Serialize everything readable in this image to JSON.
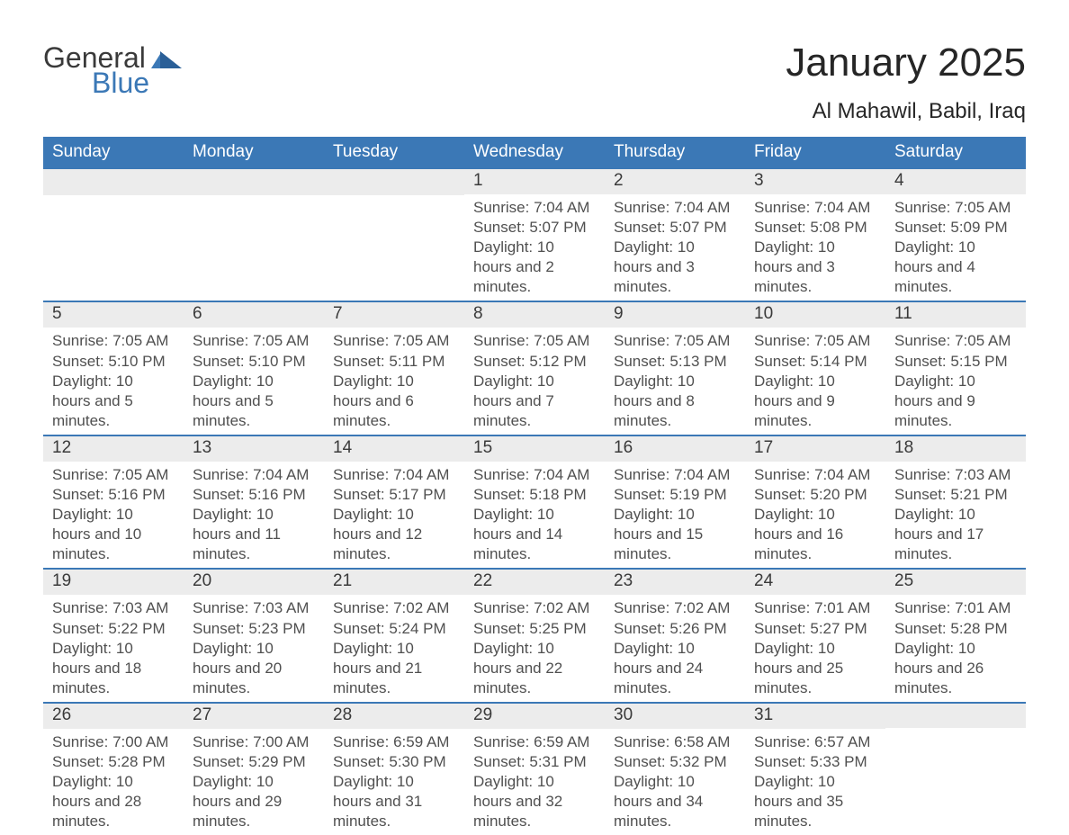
{
  "brand": {
    "word1": "General",
    "word2": "Blue"
  },
  "title": "January 2025",
  "location": "Al Mahawil, Babil, Iraq",
  "colors": {
    "header_bg": "#3b78b6",
    "header_text": "#ffffff",
    "row_bg": "#ececec",
    "rule": "#3b78b6",
    "body_text": "#505050"
  },
  "weekdays": [
    "Sunday",
    "Monday",
    "Tuesday",
    "Wednesday",
    "Thursday",
    "Friday",
    "Saturday"
  ],
  "font": {
    "family": "Segoe UI",
    "title_size_pt": 33,
    "location_size_pt": 18,
    "weekday_size_pt": 14,
    "body_size_pt": 13
  },
  "weeks": [
    [
      null,
      null,
      null,
      {
        "n": "1",
        "sunrise": "Sunrise: 7:04 AM",
        "sunset": "Sunset: 5:07 PM",
        "daylight": "Daylight: 10 hours and 2 minutes."
      },
      {
        "n": "2",
        "sunrise": "Sunrise: 7:04 AM",
        "sunset": "Sunset: 5:07 PM",
        "daylight": "Daylight: 10 hours and 3 minutes."
      },
      {
        "n": "3",
        "sunrise": "Sunrise: 7:04 AM",
        "sunset": "Sunset: 5:08 PM",
        "daylight": "Daylight: 10 hours and 3 minutes."
      },
      {
        "n": "4",
        "sunrise": "Sunrise: 7:05 AM",
        "sunset": "Sunset: 5:09 PM",
        "daylight": "Daylight: 10 hours and 4 minutes."
      }
    ],
    [
      {
        "n": "5",
        "sunrise": "Sunrise: 7:05 AM",
        "sunset": "Sunset: 5:10 PM",
        "daylight": "Daylight: 10 hours and 5 minutes."
      },
      {
        "n": "6",
        "sunrise": "Sunrise: 7:05 AM",
        "sunset": "Sunset: 5:10 PM",
        "daylight": "Daylight: 10 hours and 5 minutes."
      },
      {
        "n": "7",
        "sunrise": "Sunrise: 7:05 AM",
        "sunset": "Sunset: 5:11 PM",
        "daylight": "Daylight: 10 hours and 6 minutes."
      },
      {
        "n": "8",
        "sunrise": "Sunrise: 7:05 AM",
        "sunset": "Sunset: 5:12 PM",
        "daylight": "Daylight: 10 hours and 7 minutes."
      },
      {
        "n": "9",
        "sunrise": "Sunrise: 7:05 AM",
        "sunset": "Sunset: 5:13 PM",
        "daylight": "Daylight: 10 hours and 8 minutes."
      },
      {
        "n": "10",
        "sunrise": "Sunrise: 7:05 AM",
        "sunset": "Sunset: 5:14 PM",
        "daylight": "Daylight: 10 hours and 9 minutes."
      },
      {
        "n": "11",
        "sunrise": "Sunrise: 7:05 AM",
        "sunset": "Sunset: 5:15 PM",
        "daylight": "Daylight: 10 hours and 9 minutes."
      }
    ],
    [
      {
        "n": "12",
        "sunrise": "Sunrise: 7:05 AM",
        "sunset": "Sunset: 5:16 PM",
        "daylight": "Daylight: 10 hours and 10 minutes."
      },
      {
        "n": "13",
        "sunrise": "Sunrise: 7:04 AM",
        "sunset": "Sunset: 5:16 PM",
        "daylight": "Daylight: 10 hours and 11 minutes."
      },
      {
        "n": "14",
        "sunrise": "Sunrise: 7:04 AM",
        "sunset": "Sunset: 5:17 PM",
        "daylight": "Daylight: 10 hours and 12 minutes."
      },
      {
        "n": "15",
        "sunrise": "Sunrise: 7:04 AM",
        "sunset": "Sunset: 5:18 PM",
        "daylight": "Daylight: 10 hours and 14 minutes."
      },
      {
        "n": "16",
        "sunrise": "Sunrise: 7:04 AM",
        "sunset": "Sunset: 5:19 PM",
        "daylight": "Daylight: 10 hours and 15 minutes."
      },
      {
        "n": "17",
        "sunrise": "Sunrise: 7:04 AM",
        "sunset": "Sunset: 5:20 PM",
        "daylight": "Daylight: 10 hours and 16 minutes."
      },
      {
        "n": "18",
        "sunrise": "Sunrise: 7:03 AM",
        "sunset": "Sunset: 5:21 PM",
        "daylight": "Daylight: 10 hours and 17 minutes."
      }
    ],
    [
      {
        "n": "19",
        "sunrise": "Sunrise: 7:03 AM",
        "sunset": "Sunset: 5:22 PM",
        "daylight": "Daylight: 10 hours and 18 minutes."
      },
      {
        "n": "20",
        "sunrise": "Sunrise: 7:03 AM",
        "sunset": "Sunset: 5:23 PM",
        "daylight": "Daylight: 10 hours and 20 minutes."
      },
      {
        "n": "21",
        "sunrise": "Sunrise: 7:02 AM",
        "sunset": "Sunset: 5:24 PM",
        "daylight": "Daylight: 10 hours and 21 minutes."
      },
      {
        "n": "22",
        "sunrise": "Sunrise: 7:02 AM",
        "sunset": "Sunset: 5:25 PM",
        "daylight": "Daylight: 10 hours and 22 minutes."
      },
      {
        "n": "23",
        "sunrise": "Sunrise: 7:02 AM",
        "sunset": "Sunset: 5:26 PM",
        "daylight": "Daylight: 10 hours and 24 minutes."
      },
      {
        "n": "24",
        "sunrise": "Sunrise: 7:01 AM",
        "sunset": "Sunset: 5:27 PM",
        "daylight": "Daylight: 10 hours and 25 minutes."
      },
      {
        "n": "25",
        "sunrise": "Sunrise: 7:01 AM",
        "sunset": "Sunset: 5:28 PM",
        "daylight": "Daylight: 10 hours and 26 minutes."
      }
    ],
    [
      {
        "n": "26",
        "sunrise": "Sunrise: 7:00 AM",
        "sunset": "Sunset: 5:28 PM",
        "daylight": "Daylight: 10 hours and 28 minutes."
      },
      {
        "n": "27",
        "sunrise": "Sunrise: 7:00 AM",
        "sunset": "Sunset: 5:29 PM",
        "daylight": "Daylight: 10 hours and 29 minutes."
      },
      {
        "n": "28",
        "sunrise": "Sunrise: 6:59 AM",
        "sunset": "Sunset: 5:30 PM",
        "daylight": "Daylight: 10 hours and 31 minutes."
      },
      {
        "n": "29",
        "sunrise": "Sunrise: 6:59 AM",
        "sunset": "Sunset: 5:31 PM",
        "daylight": "Daylight: 10 hours and 32 minutes."
      },
      {
        "n": "30",
        "sunrise": "Sunrise: 6:58 AM",
        "sunset": "Sunset: 5:32 PM",
        "daylight": "Daylight: 10 hours and 34 minutes."
      },
      {
        "n": "31",
        "sunrise": "Sunrise: 6:57 AM",
        "sunset": "Sunset: 5:33 PM",
        "daylight": "Daylight: 10 hours and 35 minutes."
      },
      null
    ]
  ]
}
